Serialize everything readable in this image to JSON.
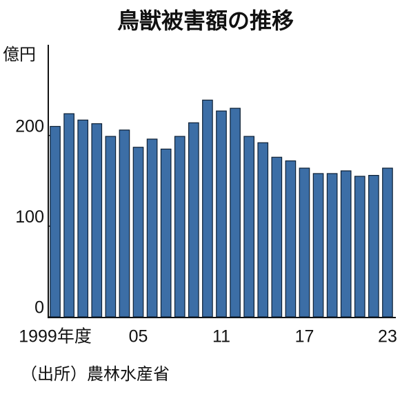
{
  "chart_data": {
    "type": "bar",
    "title": "鳥獣被害額の推移",
    "y_label": "億円",
    "source": "（出所）農林水産省",
    "categories": [
      "1999年度",
      null,
      null,
      null,
      null,
      null,
      "05",
      null,
      null,
      null,
      null,
      null,
      "11",
      null,
      null,
      null,
      null,
      null,
      "17",
      null,
      null,
      null,
      null,
      null,
      "23"
    ],
    "values": [
      210,
      224,
      217,
      213,
      199,
      206,
      187,
      196,
      185,
      199,
      214,
      239,
      227,
      230,
      199,
      192,
      176,
      172,
      164,
      158,
      158,
      161,
      155,
      156,
      164
    ],
    "color": "#3c6ea6",
    "ylim": [
      0,
      300
    ],
    "yticks": [
      0,
      100,
      200
    ],
    "grid": false
  }
}
